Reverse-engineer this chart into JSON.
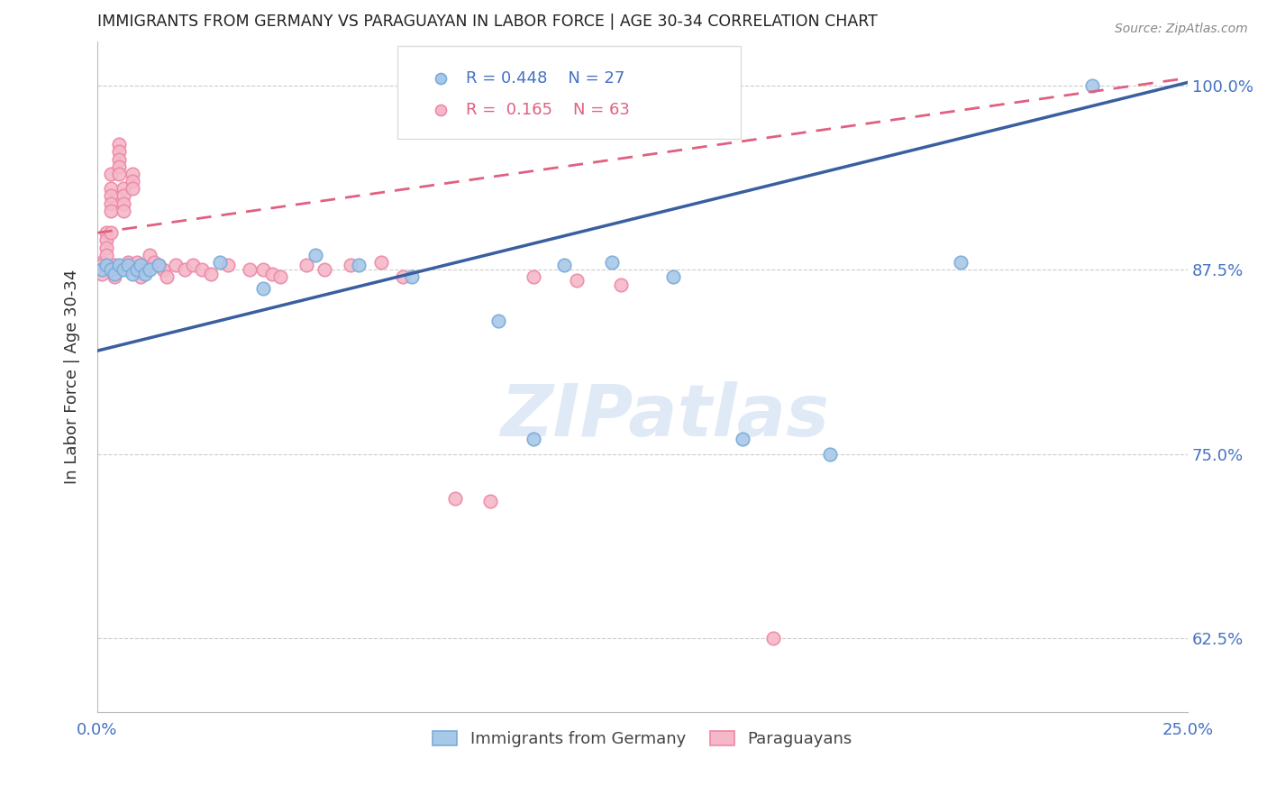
{
  "title": "IMMIGRANTS FROM GERMANY VS PARAGUAYAN IN LABOR FORCE | AGE 30-34 CORRELATION CHART",
  "source": "Source: ZipAtlas.com",
  "ylabel": "In Labor Force | Age 30-34",
  "xlim": [
    0.0,
    0.25
  ],
  "ylim": [
    0.575,
    1.03
  ],
  "yticks": [
    0.625,
    0.75,
    0.875,
    1.0
  ],
  "ytick_labels": [
    "62.5%",
    "75.0%",
    "87.5%",
    "100.0%"
  ],
  "xticks": [
    0.0,
    0.05,
    0.1,
    0.15,
    0.2,
    0.25
  ],
  "xtick_labels_show": [
    "0.0%",
    "",
    "",
    "",
    "",
    "25.0%"
  ],
  "blue_color": "#a8c8e8",
  "pink_color": "#f4b8c8",
  "blue_edge_color": "#7aabda",
  "pink_edge_color": "#ee88a8",
  "blue_line_color": "#3a5fa0",
  "pink_line_color": "#e06080",
  "R_blue": 0.448,
  "N_blue": 27,
  "R_pink": 0.165,
  "N_pink": 63,
  "legend_blue_label": "Immigrants from Germany",
  "legend_pink_label": "Paraguayans",
  "watermark": "ZIPatlas",
  "blue_scatter_x": [
    0.001,
    0.002,
    0.003,
    0.004,
    0.005,
    0.006,
    0.007,
    0.008,
    0.009,
    0.01,
    0.011,
    0.012,
    0.014,
    0.028,
    0.038,
    0.05,
    0.06,
    0.072,
    0.092,
    0.1,
    0.107,
    0.118,
    0.132,
    0.148,
    0.168,
    0.198,
    0.228
  ],
  "blue_scatter_y": [
    0.875,
    0.878,
    0.875,
    0.872,
    0.878,
    0.875,
    0.878,
    0.872,
    0.875,
    0.878,
    0.872,
    0.875,
    0.878,
    0.88,
    0.862,
    0.885,
    0.878,
    0.87,
    0.84,
    0.76,
    0.878,
    0.88,
    0.87,
    0.76,
    0.75,
    0.88,
    1.0
  ],
  "pink_scatter_x": [
    0.001,
    0.001,
    0.001,
    0.001,
    0.002,
    0.002,
    0.002,
    0.002,
    0.003,
    0.003,
    0.003,
    0.003,
    0.003,
    0.003,
    0.004,
    0.004,
    0.004,
    0.004,
    0.005,
    0.005,
    0.005,
    0.005,
    0.005,
    0.006,
    0.006,
    0.006,
    0.006,
    0.007,
    0.007,
    0.008,
    0.008,
    0.008,
    0.009,
    0.009,
    0.01,
    0.01,
    0.011,
    0.012,
    0.013,
    0.014,
    0.015,
    0.016,
    0.018,
    0.02,
    0.022,
    0.024,
    0.026,
    0.03,
    0.035,
    0.038,
    0.04,
    0.042,
    0.048,
    0.052,
    0.058,
    0.065,
    0.07,
    0.082,
    0.09,
    0.1,
    0.11,
    0.12,
    0.155
  ],
  "pink_scatter_y": [
    0.88,
    0.878,
    0.875,
    0.872,
    0.9,
    0.895,
    0.89,
    0.885,
    0.94,
    0.93,
    0.925,
    0.92,
    0.915,
    0.9,
    0.878,
    0.875,
    0.872,
    0.87,
    0.96,
    0.955,
    0.95,
    0.945,
    0.94,
    0.93,
    0.925,
    0.92,
    0.915,
    0.88,
    0.875,
    0.94,
    0.935,
    0.93,
    0.88,
    0.875,
    0.875,
    0.87,
    0.875,
    0.885,
    0.88,
    0.878,
    0.875,
    0.87,
    0.878,
    0.875,
    0.878,
    0.875,
    0.872,
    0.878,
    0.875,
    0.875,
    0.872,
    0.87,
    0.878,
    0.875,
    0.878,
    0.88,
    0.87,
    0.72,
    0.718,
    0.87,
    0.868,
    0.865,
    0.625
  ]
}
